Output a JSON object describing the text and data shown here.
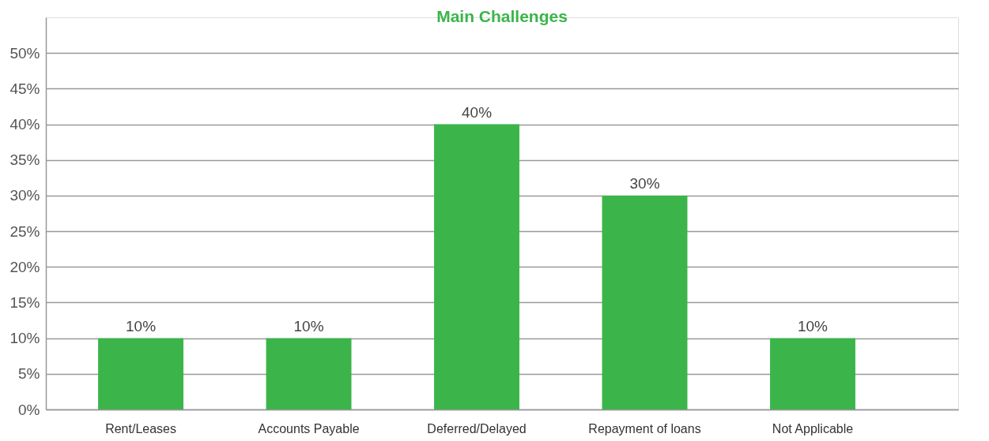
{
  "chart_data": {
    "type": "bar",
    "title": "Main Challenges",
    "categories": [
      "Rent/Leases",
      "Accounts Payable",
      "Deferred/Delayed",
      "Repayment of loans",
      "Not Applicable"
    ],
    "values": [
      10,
      10,
      40,
      30,
      10
    ],
    "color": "#3bb54a",
    "value_labels": [
      "10%",
      "10%",
      "40%",
      "30%",
      "10%"
    ],
    "ylim": [
      0,
      55
    ],
    "yticks": [
      {
        "value": 0,
        "label": "0%"
      },
      {
        "value": 5,
        "label": "5%"
      },
      {
        "value": 10,
        "label": "10%"
      },
      {
        "value": 15,
        "label": "15%"
      },
      {
        "value": 20,
        "label": "20%"
      },
      {
        "value": 25,
        "label": "25%"
      },
      {
        "value": 30,
        "label": "30%"
      },
      {
        "value": 35,
        "label": "35%"
      },
      {
        "value": 40,
        "label": "40%"
      },
      {
        "value": 45,
        "label": "45%"
      },
      {
        "value": 50,
        "label": "50%"
      }
    ],
    "grid": "y"
  }
}
